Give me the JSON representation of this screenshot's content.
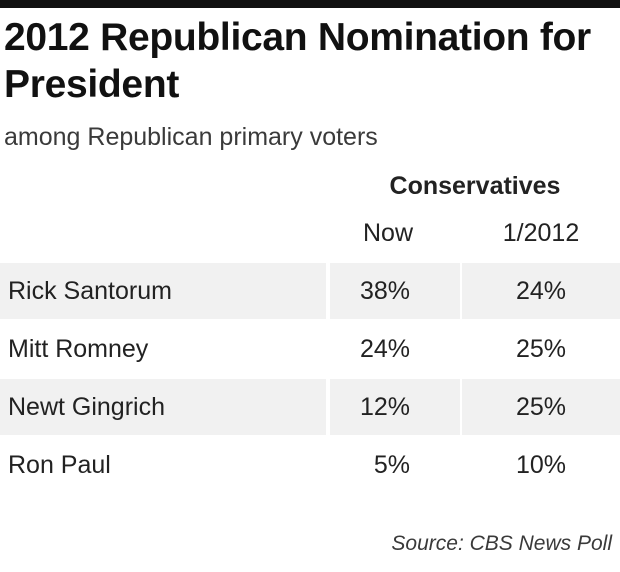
{
  "chart_data": {
    "type": "table",
    "title": "2012 Republican Nomination for President",
    "subtitle": "among Republican primary voters",
    "group_header": "Conservatives",
    "columns": [
      "Now",
      "1/2012"
    ],
    "rows": [
      {
        "name": "Rick Santorum",
        "now": "38%",
        "prev": "24%"
      },
      {
        "name": "Mitt Romney",
        "now": "24%",
        "prev": "25%"
      },
      {
        "name": "Newt Gingrich",
        "now": "12%",
        "prev": "25%"
      },
      {
        "name": "Ron Paul",
        "now": "5%",
        "prev": "10%"
      }
    ],
    "source": "Source: CBS News Poll"
  },
  "colors": {
    "top_rule": "#111111",
    "row_shade": "#f1f1f1",
    "text": "#222222"
  }
}
